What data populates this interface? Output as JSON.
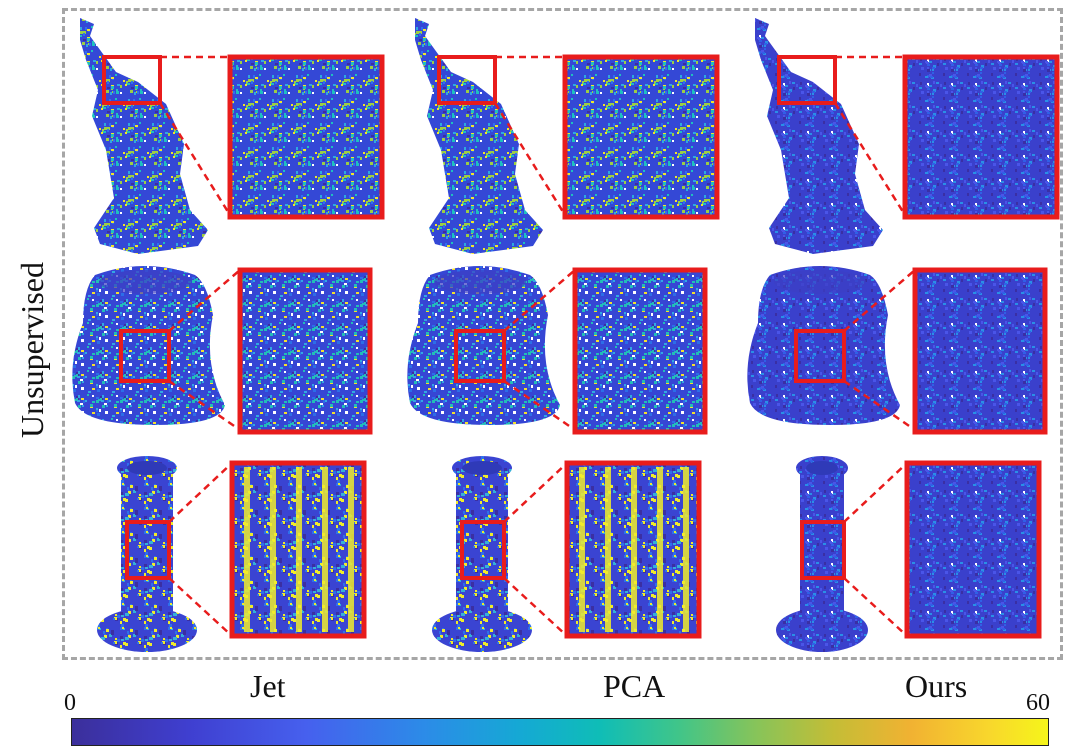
{
  "figure": {
    "row_axis_label": "Unsupervised",
    "columns": [
      "Jet",
      "PCA",
      "Ours"
    ],
    "rows": [
      "statue",
      "vase",
      "column"
    ],
    "colorbar": {
      "min": "0",
      "max": "60"
    },
    "colors": {
      "zoom_box": "#e81c1c",
      "frame": "#a6a6a6",
      "low": "#3f3fd0",
      "high": "#f6f51a"
    }
  }
}
